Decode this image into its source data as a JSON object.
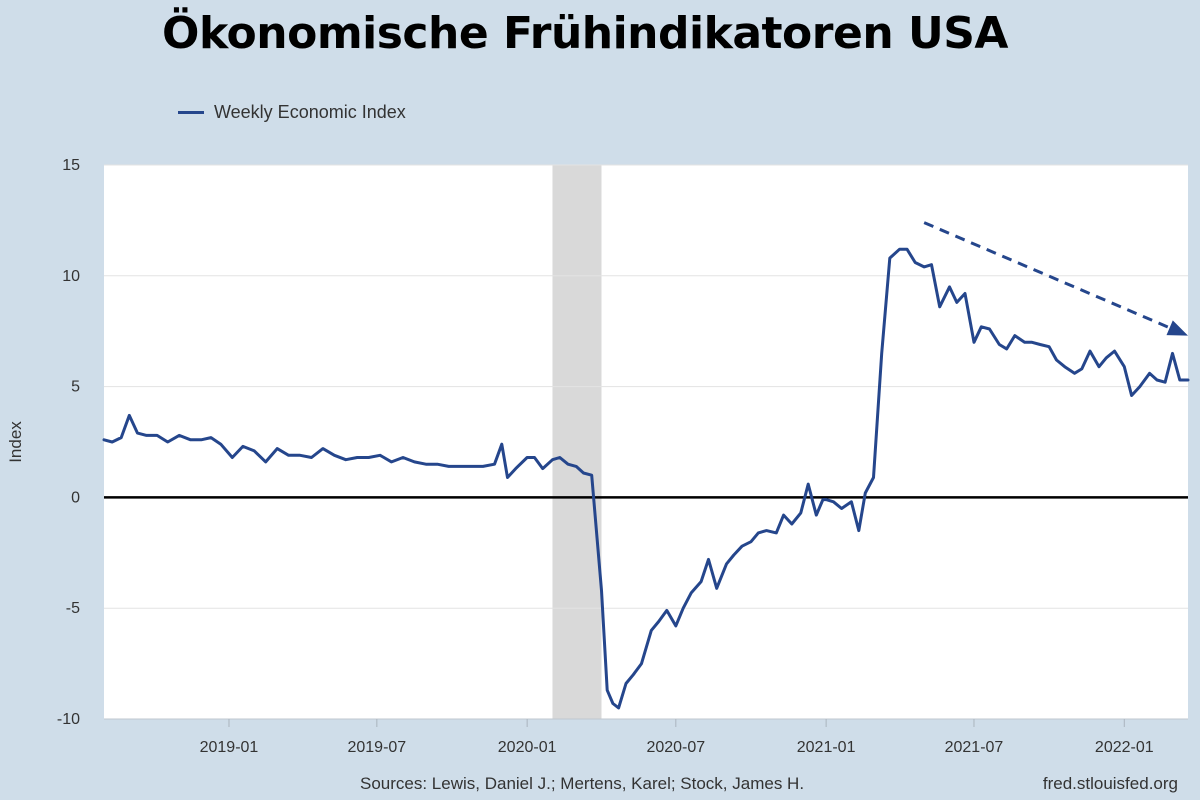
{
  "title": "Ökonomische Frühindikatoren USA",
  "legend": {
    "label": "Weekly Economic Index"
  },
  "footer": {
    "source": "Sources: Lewis, Daniel J.; Mertens, Karel; Stock, James H.",
    "site": "fred.stlouisfed.org"
  },
  "colors": {
    "line": "#25468c",
    "recession": "#d9d9d9",
    "zero_line": "#000000",
    "background": "#cfdde9"
  },
  "chart_data": {
    "type": "line",
    "title": "Ökonomische Frühindikatoren USA",
    "ylabel": "Index",
    "xlabel": "",
    "ylim": [
      -10,
      15
    ],
    "xlim": [
      "2018-08-01",
      "2022-03-20"
    ],
    "y_ticks": [
      15,
      10,
      5,
      0,
      -5,
      -10
    ],
    "x_ticks": [
      "2019-01",
      "2019-07",
      "2020-01",
      "2020-07",
      "2021-01",
      "2021-07",
      "2022-01"
    ],
    "grid": true,
    "legend_position": "top-left",
    "recession_band": {
      "start": "2020-02-01",
      "end": "2020-04-01"
    },
    "trend_arrow": {
      "start": {
        "x": "2021-05-01",
        "y": 12.4
      },
      "end": {
        "x": "2022-03-20",
        "y": 7.3
      }
    },
    "series": [
      {
        "name": "Weekly Economic Index",
        "x": [
          "2018-08-01",
          "2018-08-11",
          "2018-08-22",
          "2018-09-01",
          "2018-09-11",
          "2018-09-22",
          "2018-10-05",
          "2018-10-18",
          "2018-11-01",
          "2018-11-15",
          "2018-11-28",
          "2018-12-10",
          "2018-12-22",
          "2019-01-05",
          "2019-01-18",
          "2019-02-01",
          "2019-02-15",
          "2019-03-01",
          "2019-03-15",
          "2019-03-29",
          "2019-04-12",
          "2019-04-26",
          "2019-05-10",
          "2019-05-24",
          "2019-06-07",
          "2019-06-21",
          "2019-07-05",
          "2019-07-19",
          "2019-08-02",
          "2019-08-16",
          "2019-08-30",
          "2019-09-13",
          "2019-09-27",
          "2019-10-11",
          "2019-10-25",
          "2019-11-08",
          "2019-11-22",
          "2019-12-01",
          "2019-12-08",
          "2019-12-18",
          "2020-01-01",
          "2020-01-10",
          "2020-01-20",
          "2020-02-01",
          "2020-02-10",
          "2020-02-20",
          "2020-03-01",
          "2020-03-10",
          "2020-03-20",
          "2020-04-01",
          "2020-04-08",
          "2020-04-15",
          "2020-04-22",
          "2020-05-01",
          "2020-05-10",
          "2020-05-20",
          "2020-06-01",
          "2020-06-10",
          "2020-06-20",
          "2020-07-01",
          "2020-07-10",
          "2020-07-20",
          "2020-08-01",
          "2020-08-10",
          "2020-08-20",
          "2020-09-01",
          "2020-09-10",
          "2020-09-20",
          "2020-10-01",
          "2020-10-10",
          "2020-10-20",
          "2020-11-01",
          "2020-11-10",
          "2020-11-20",
          "2020-12-01",
          "2020-12-10",
          "2020-12-20",
          "2020-12-28",
          "2021-01-01",
          "2021-01-10",
          "2021-01-20",
          "2021-02-01",
          "2021-02-10",
          "2021-02-18",
          "2021-02-28",
          "2021-03-10",
          "2021-03-20",
          "2021-04-01",
          "2021-04-10",
          "2021-04-20",
          "2021-05-01",
          "2021-05-10",
          "2021-05-20",
          "2021-06-01",
          "2021-06-10",
          "2021-06-20",
          "2021-07-01",
          "2021-07-10",
          "2021-07-20",
          "2021-08-01",
          "2021-08-10",
          "2021-08-20",
          "2021-09-01",
          "2021-09-10",
          "2021-09-20",
          "2021-10-01",
          "2021-10-10",
          "2021-10-20",
          "2021-11-01",
          "2021-11-10",
          "2021-11-20",
          "2021-12-01",
          "2021-12-10",
          "2021-12-20",
          "2022-01-01",
          "2022-01-10",
          "2022-01-20",
          "2022-02-01",
          "2022-02-10",
          "2022-02-20",
          "2022-03-01",
          "2022-03-10",
          "2022-03-20"
        ],
        "values": [
          2.6,
          2.5,
          2.7,
          3.7,
          2.9,
          2.8,
          2.8,
          2.5,
          2.8,
          2.6,
          2.6,
          2.7,
          2.4,
          1.8,
          2.3,
          2.1,
          1.6,
          2.2,
          1.9,
          1.9,
          1.8,
          2.2,
          1.9,
          1.7,
          1.8,
          1.8,
          1.9,
          1.6,
          1.8,
          1.6,
          1.5,
          1.5,
          1.4,
          1.4,
          1.4,
          1.4,
          1.5,
          2.4,
          0.9,
          1.3,
          1.8,
          1.8,
          1.3,
          1.7,
          1.8,
          1.5,
          1.4,
          1.1,
          1.0,
          -4.2,
          -8.7,
          -9.3,
          -9.5,
          -8.4,
          -8.0,
          -7.5,
          -6.0,
          -5.6,
          -5.1,
          -5.8,
          -5.0,
          -4.3,
          -3.8,
          -2.8,
          -4.1,
          -3.0,
          -2.6,
          -2.2,
          -2.0,
          -1.6,
          -1.5,
          -1.6,
          -0.8,
          -1.2,
          -0.7,
          0.6,
          -0.8,
          -0.1,
          -0.1,
          -0.2,
          -0.5,
          -0.2,
          -1.5,
          0.2,
          0.9,
          6.5,
          10.8,
          11.2,
          11.2,
          10.6,
          10.4,
          10.5,
          8.6,
          9.5,
          8.8,
          9.2,
          7.0,
          7.7,
          7.6,
          6.9,
          6.7,
          7.3,
          7.0,
          7.0,
          6.9,
          6.8,
          6.2,
          5.9,
          5.6,
          5.8,
          6.6,
          5.9,
          6.3,
          6.6,
          5.9,
          4.6,
          5.0,
          5.6,
          5.3,
          5.2,
          6.5,
          5.3,
          5.3
        ]
      }
    ]
  }
}
